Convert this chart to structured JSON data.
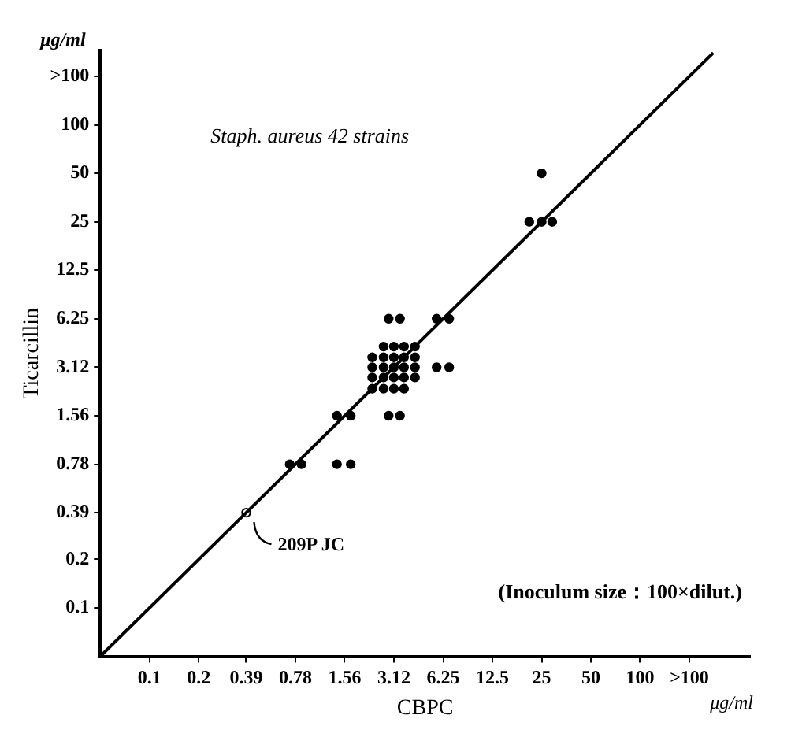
{
  "chart_data": {
    "type": "scatter",
    "xlabel": "CBPC",
    "ylabel": "Ticarcillin",
    "annotations": [
      "Staph. aureus 42 strains",
      "(Inoculum size：100×dilut.)",
      "μg/ml",
      "μg/ml",
      {
        "text": "209P JC",
        "x": 0.39,
        "y": 0.39
      }
    ],
    "log": "xy",
    "grid": false,
    "legend": false,
    "marker": "circle",
    "xlim": [
      0.05,
      470
    ],
    "ylim": [
      0.05,
      290
    ],
    "xticks": [
      0.1,
      0.2,
      0.39,
      0.78,
      1.56,
      3.12,
      6.25,
      12.5,
      25,
      50,
      100,
      {
        "value": 200,
        "label": ">100"
      }
    ],
    "yticks": [
      0.1,
      0.2,
      0.39,
      0.78,
      1.56,
      3.12,
      6.25,
      12.5,
      25,
      50,
      100,
      {
        "value": 200,
        "label": ">100"
      }
    ],
    "series": [
      {
        "type": "line",
        "color": "#000000",
        "marker": "none",
        "x": [
          0.05,
          280
        ],
        "values": [
          0.05,
          280
        ]
      },
      {
        "color": "#000000",
        "x": [
          25,
          21,
          25,
          29,
          5.7,
          6.8,
          2.9,
          3.4,
          2.7,
          3.12,
          3.6,
          4.2,
          2.3,
          2.7,
          3.12,
          3.6,
          4.2,
          2.3,
          2.7,
          3.12,
          3.6,
          4.2,
          2.3,
          2.7,
          3.12,
          3.6,
          4.2,
          2.3,
          2.7,
          3.12,
          3.6,
          5.7,
          6.8,
          1.4,
          1.7,
          2.9,
          3.4,
          0.72,
          0.85,
          1.4,
          1.7
        ],
        "values": [
          50,
          25,
          25,
          25,
          6.25,
          6.25,
          6.25,
          6.25,
          4.2,
          4.2,
          4.2,
          4.2,
          3.6,
          3.6,
          3.6,
          3.6,
          3.6,
          3.12,
          3.12,
          3.12,
          3.12,
          3.12,
          2.7,
          2.7,
          2.7,
          2.7,
          2.7,
          2.3,
          2.3,
          2.3,
          2.3,
          3.12,
          3.12,
          1.56,
          1.56,
          1.56,
          1.56,
          0.78,
          0.78,
          0.78,
          0.78
        ]
      },
      {
        "color": "#ffffff",
        "x": [
          0.39
        ],
        "values": [
          0.39
        ]
      }
    ]
  }
}
